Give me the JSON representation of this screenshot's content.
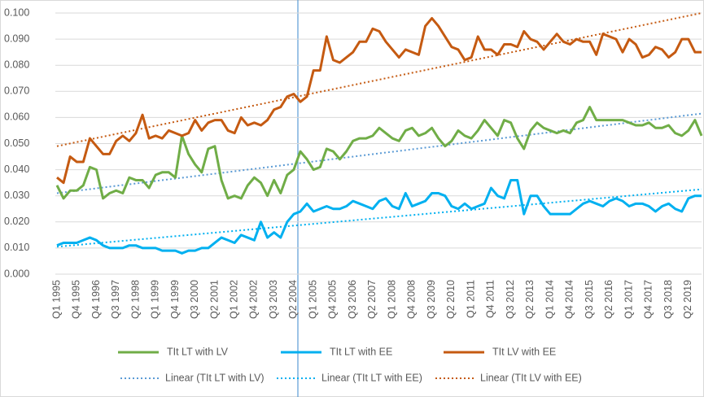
{
  "chart_data": {
    "type": "line",
    "categories": [
      "Q1 1995",
      null,
      null,
      "Q4 1995",
      null,
      null,
      "Q4 1996",
      null,
      null,
      "Q3 1997",
      null,
      null,
      "Q2 1998",
      null,
      null,
      "Q1 1999",
      null,
      null,
      "Q4 1999",
      null,
      null,
      "Q3 2000",
      null,
      null,
      "Q2 2001",
      null,
      null,
      "Q1 2002",
      null,
      null,
      "Q4 2002",
      null,
      null,
      "Q3 2003",
      null,
      null,
      "Q2 2004",
      null,
      null,
      "Q1 2005",
      null,
      null,
      "Q4 2005",
      null,
      null,
      "Q3 2006",
      null,
      null,
      "Q2 2007",
      null,
      null,
      "Q1 2008",
      null,
      null,
      "Q4 2008",
      null,
      null,
      "Q3 2009",
      null,
      null,
      "Q2 2010",
      null,
      null,
      "Q1 2011",
      null,
      null,
      "Q4 2011",
      null,
      null,
      "Q3 2012",
      null,
      null,
      "Q2 2013",
      null,
      null,
      "Q1 2014",
      null,
      null,
      "Q4 2014",
      null,
      null,
      "Q3 2015",
      null,
      null,
      "Q2 2016",
      null,
      null,
      "Q1 2017",
      null,
      null,
      "Q4 2017",
      null,
      null,
      "Q3 2018",
      null,
      null,
      "Q2 2019",
      null,
      null
    ],
    "series": [
      {
        "name": "TIt LT with LV",
        "color": "#70ad47",
        "values": [
          0.034,
          0.029,
          0.032,
          0.032,
          0.034,
          0.041,
          0.04,
          0.029,
          0.031,
          0.032,
          0.031,
          0.037,
          0.036,
          0.036,
          0.033,
          0.038,
          0.039,
          0.039,
          0.037,
          0.053,
          0.046,
          0.042,
          0.039,
          0.048,
          0.049,
          0.036,
          0.029,
          0.03,
          0.029,
          0.034,
          0.037,
          0.035,
          0.03,
          0.036,
          0.031,
          0.038,
          0.04,
          0.047,
          0.044,
          0.04,
          0.041,
          0.048,
          0.047,
          0.044,
          0.047,
          0.051,
          0.052,
          0.052,
          0.053,
          0.056,
          0.054,
          0.052,
          0.051,
          0.055,
          0.056,
          0.053,
          0.054,
          0.056,
          0.052,
          0.049,
          0.051,
          0.055,
          0.053,
          0.052,
          0.055,
          0.059,
          0.056,
          0.053,
          0.059,
          0.058,
          0.052,
          0.048,
          0.055,
          0.058,
          0.056,
          0.055,
          0.054,
          0.055,
          0.054,
          0.058,
          0.059,
          0.064,
          0.059,
          0.059,
          0.059,
          0.059,
          0.059,
          0.058,
          0.057,
          0.057,
          0.058,
          0.056,
          0.056,
          0.057,
          0.054,
          0.053,
          0.055,
          0.059,
          0.053
        ],
        "trendline": {
          "name": "Linear (TIt LT with LV)",
          "color": "#5b9bd5",
          "values": [
            0.031,
            0.0615
          ]
        }
      },
      {
        "name": "TIt  LT with EE",
        "color": "#00b0f0",
        "values": [
          0.011,
          0.012,
          0.012,
          0.012,
          0.013,
          0.014,
          0.013,
          0.011,
          0.01,
          0.01,
          0.01,
          0.011,
          0.011,
          0.01,
          0.01,
          0.01,
          0.009,
          0.009,
          0.009,
          0.008,
          0.009,
          0.009,
          0.01,
          0.01,
          0.012,
          0.014,
          0.013,
          0.012,
          0.015,
          0.014,
          0.013,
          0.02,
          0.014,
          0.016,
          0.014,
          0.02,
          0.023,
          0.024,
          0.027,
          0.024,
          0.025,
          0.026,
          0.025,
          0.025,
          0.026,
          0.028,
          0.027,
          0.026,
          0.025,
          0.028,
          0.029,
          0.026,
          0.025,
          0.031,
          0.026,
          0.027,
          0.028,
          0.031,
          0.031,
          0.03,
          0.026,
          0.025,
          0.027,
          0.025,
          0.026,
          0.027,
          0.033,
          0.03,
          0.029,
          0.036,
          0.036,
          0.023,
          0.03,
          0.03,
          0.026,
          0.023,
          0.023,
          0.023,
          0.023,
          0.025,
          0.027,
          0.028,
          0.027,
          0.026,
          0.028,
          0.029,
          0.028,
          0.026,
          0.027,
          0.027,
          0.026,
          0.024,
          0.026,
          0.027,
          0.025,
          0.024,
          0.029,
          0.03,
          0.03
        ],
        "trendline": {
          "name": "Linear (TIt  LT with EE)",
          "color": "#00b0f0",
          "values": [
            0.0105,
            0.0325
          ]
        }
      },
      {
        "name": "TIt  LV with EE",
        "color": "#c55a11",
        "values": [
          0.037,
          0.035,
          0.045,
          0.043,
          0.043,
          0.052,
          0.049,
          0.046,
          0.046,
          0.051,
          0.053,
          0.051,
          0.054,
          0.061,
          0.052,
          0.053,
          0.052,
          0.055,
          0.054,
          0.053,
          0.054,
          0.059,
          0.055,
          0.058,
          0.059,
          0.059,
          0.055,
          0.054,
          0.06,
          0.057,
          0.058,
          0.057,
          0.059,
          0.063,
          0.064,
          0.068,
          0.069,
          0.066,
          0.068,
          0.078,
          0.078,
          0.091,
          0.082,
          0.081,
          0.083,
          0.085,
          0.089,
          0.089,
          0.094,
          0.093,
          0.089,
          0.086,
          0.083,
          0.086,
          0.085,
          0.084,
          0.095,
          0.098,
          0.095,
          0.091,
          0.087,
          0.086,
          0.082,
          0.083,
          0.091,
          0.086,
          0.086,
          0.084,
          0.088,
          0.088,
          0.087,
          0.093,
          0.09,
          0.089,
          0.086,
          0.089,
          0.092,
          0.089,
          0.088,
          0.09,
          0.089,
          0.089,
          0.084,
          0.092,
          0.091,
          0.09,
          0.085,
          0.09,
          0.088,
          0.083,
          0.084,
          0.087,
          0.086,
          0.083,
          0.085,
          0.09,
          0.09,
          0.085,
          0.085
        ],
        "trendline": {
          "name": "Linear (TIt  LV with EE)",
          "color": "#c55a11",
          "values": [
            0.049,
            0.1
          ]
        }
      }
    ],
    "ylim": [
      0,
      0.1
    ],
    "yticks": [
      {
        "value": 0,
        "label": "0.000"
      },
      {
        "value": 0.01,
        "label": "0.010"
      },
      {
        "value": 0.02,
        "label": "0.020"
      },
      {
        "value": 0.03,
        "label": "0.030"
      },
      {
        "value": 0.04,
        "label": "0.040"
      },
      {
        "value": 0.05,
        "label": "0.050"
      },
      {
        "value": 0.06,
        "label": "0.060"
      },
      {
        "value": 0.07,
        "label": "0.070"
      },
      {
        "value": 0.08,
        "label": "0.080"
      },
      {
        "value": 0.09,
        "label": "0.090"
      },
      {
        "value": 0.1,
        "label": "0.100"
      }
    ],
    "grid": true,
    "legend": "bottom"
  }
}
